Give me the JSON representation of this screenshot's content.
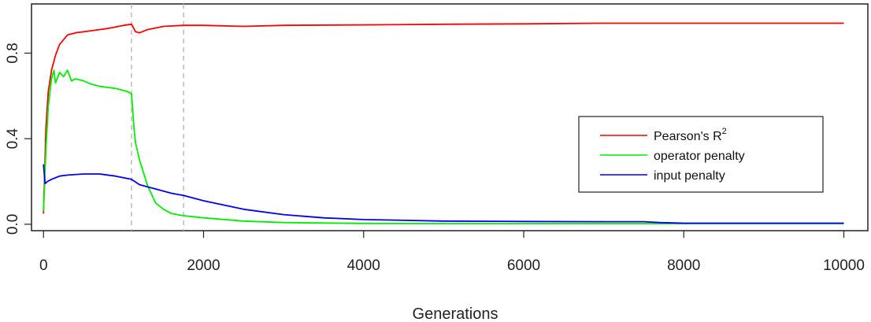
{
  "chart_data": {
    "type": "line",
    "title": "",
    "xlabel": "Generations",
    "ylabel": "",
    "xlim": [
      -150,
      10300
    ],
    "ylim": [
      -0.03,
      1.03
    ],
    "x_ticks": [
      0,
      2000,
      4000,
      6000,
      8000,
      10000
    ],
    "x_tick_labels": [
      "0",
      "2000",
      "4000",
      "6000",
      "8000",
      "10000"
    ],
    "y_ticks": [
      0.0,
      0.4,
      0.8
    ],
    "y_tick_labels": [
      "0.0",
      "0.4",
      "0.8"
    ],
    "grid": false,
    "legend_position": "right",
    "reference_lines_x": [
      1100,
      1750
    ],
    "reference_line_color": "#bbbbbb",
    "legend": {
      "r2_base": "Pearson's R",
      "r2_sup": "2",
      "operator": "operator penalty",
      "input": "input penalty"
    },
    "series": [
      {
        "name": "Pearson's R²",
        "color": "#ff0000",
        "x": [
          0,
          30,
          60,
          100,
          150,
          200,
          300,
          400,
          600,
          800,
          1000,
          1100,
          1150,
          1200,
          1300,
          1500,
          1750,
          2000,
          2500,
          3000,
          4000,
          5000,
          6000,
          7000,
          8000,
          9000,
          10000
        ],
        "y": [
          0.05,
          0.45,
          0.62,
          0.72,
          0.79,
          0.84,
          0.885,
          0.895,
          0.905,
          0.915,
          0.93,
          0.935,
          0.9,
          0.895,
          0.91,
          0.925,
          0.93,
          0.93,
          0.925,
          0.93,
          0.932,
          0.935,
          0.937,
          0.94,
          0.94,
          0.94,
          0.94
        ]
      },
      {
        "name": "operator penalty",
        "color": "#00ee00",
        "x": [
          0,
          30,
          60,
          100,
          130,
          150,
          200,
          250,
          300,
          350,
          400,
          500,
          600,
          700,
          800,
          900,
          1000,
          1050,
          1100,
          1130,
          1150,
          1200,
          1300,
          1400,
          1500,
          1600,
          1750,
          2000,
          2500,
          3000,
          4000,
          5000,
          6000,
          7000,
          8000,
          10000
        ],
        "y": [
          0.06,
          0.35,
          0.55,
          0.68,
          0.72,
          0.66,
          0.71,
          0.69,
          0.72,
          0.67,
          0.68,
          0.67,
          0.655,
          0.645,
          0.64,
          0.635,
          0.625,
          0.62,
          0.61,
          0.45,
          0.38,
          0.3,
          0.18,
          0.1,
          0.07,
          0.05,
          0.04,
          0.03,
          0.015,
          0.008,
          0.004,
          0.003,
          0.003,
          0.003,
          0.003,
          0.003
        ]
      },
      {
        "name": "input penalty",
        "color": "#0000ee",
        "x": [
          0,
          20,
          50,
          100,
          200,
          300,
          500,
          700,
          900,
          1100,
          1200,
          1400,
          1600,
          1750,
          2000,
          2500,
          3000,
          3500,
          4000,
          5000,
          6000,
          7000,
          7500,
          7700,
          8000,
          10000
        ],
        "y": [
          0.28,
          0.19,
          0.2,
          0.21,
          0.225,
          0.23,
          0.235,
          0.235,
          0.225,
          0.21,
          0.185,
          0.165,
          0.145,
          0.135,
          0.11,
          0.07,
          0.045,
          0.03,
          0.022,
          0.015,
          0.013,
          0.012,
          0.012,
          0.008,
          0.005,
          0.005
        ]
      }
    ]
  }
}
